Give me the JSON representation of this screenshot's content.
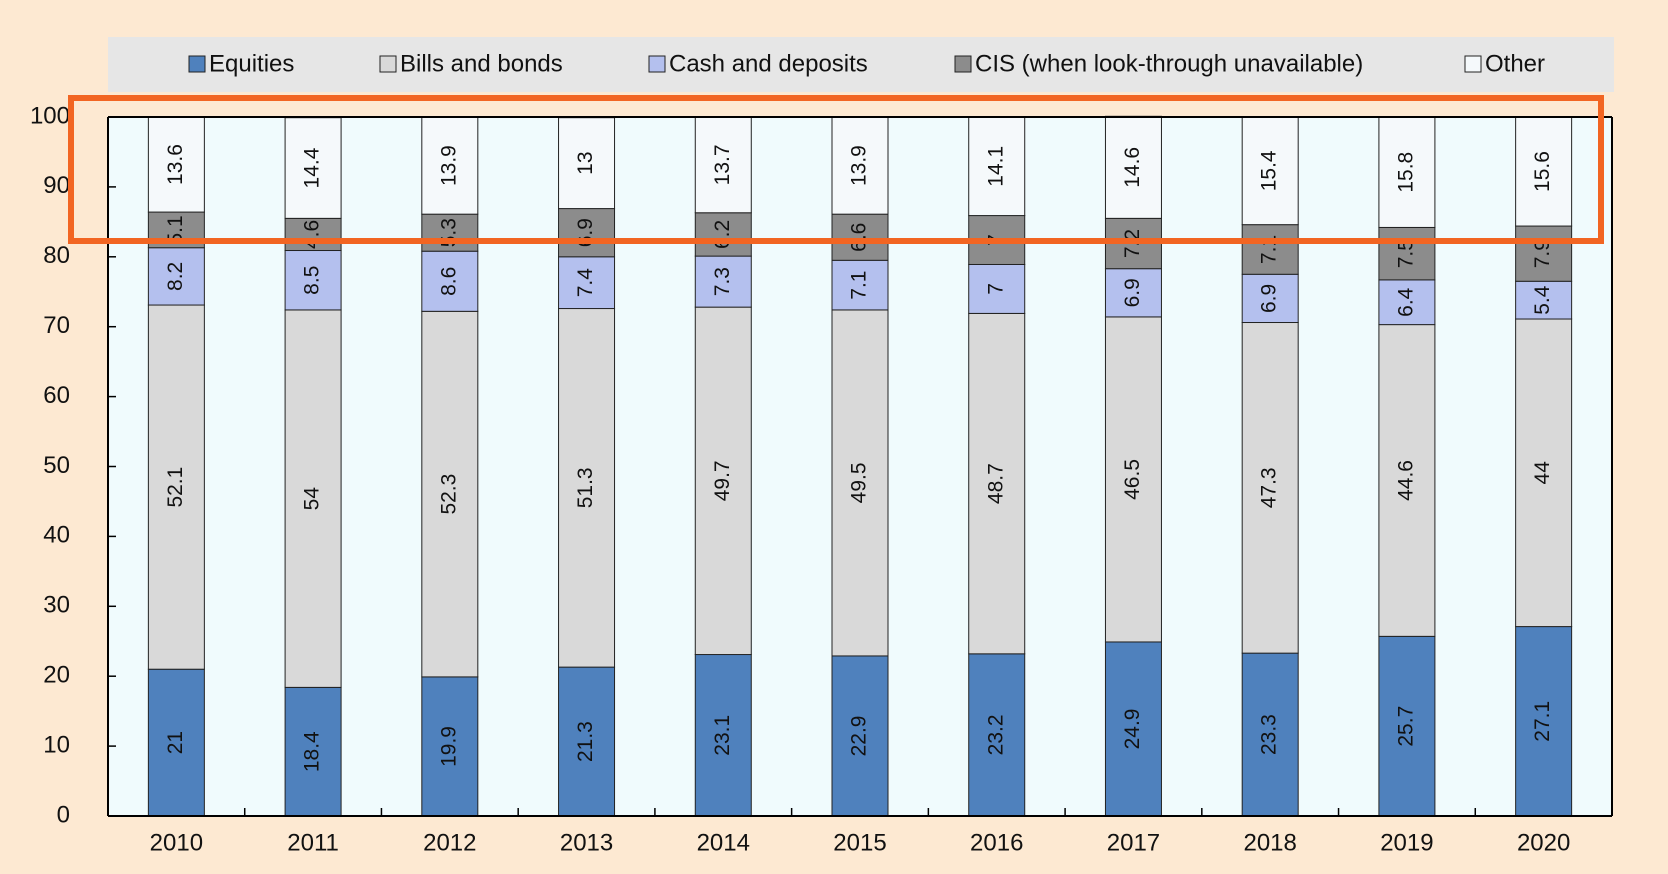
{
  "chart_data": {
    "type": "stacked_bar",
    "categories": [
      "2010",
      "2011",
      "2012",
      "2013",
      "2014",
      "2015",
      "2016",
      "2017",
      "2018",
      "2019",
      "2020"
    ],
    "series": [
      {
        "name": "Equities",
        "color": "#4f81bd",
        "values": [
          21.0,
          18.4,
          19.9,
          21.3,
          23.1,
          22.9,
          23.2,
          24.9,
          23.3,
          25.7,
          27.1
        ]
      },
      {
        "name": "Bills and bonds",
        "color": "#d9d9d9",
        "values": [
          52.1,
          54.0,
          52.3,
          51.3,
          49.7,
          49.5,
          48.7,
          46.5,
          47.3,
          44.6,
          44.0
        ]
      },
      {
        "name": "Cash and deposits",
        "color": "#b4c0ee",
        "values": [
          8.2,
          8.5,
          8.6,
          7.4,
          7.3,
          7.1,
          7.0,
          6.9,
          6.9,
          6.4,
          5.4
        ]
      },
      {
        "name": "CIS (when look-through unavailable)",
        "color": "#8c8c8c",
        "values": [
          5.1,
          4.6,
          5.3,
          6.9,
          6.2,
          6.6,
          7.0,
          7.2,
          7.1,
          7.5,
          7.9
        ]
      },
      {
        "name": "Other",
        "color": "#f5f9fb",
        "values": [
          13.6,
          14.4,
          13.9,
          13.0,
          13.7,
          13.9,
          14.1,
          14.6,
          15.4,
          15.8,
          15.6
        ]
      }
    ],
    "ylim": [
      0,
      100
    ],
    "yticks": [
      0,
      10,
      20,
      30,
      40,
      50,
      60,
      70,
      80,
      90,
      100
    ]
  }
}
